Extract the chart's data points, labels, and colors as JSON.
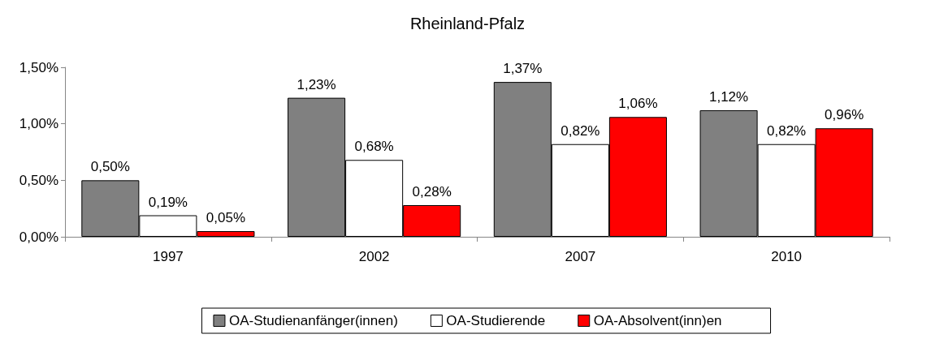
{
  "chart_data": {
    "type": "bar",
    "title": "Rheinland-Pfalz",
    "categories": [
      "1997",
      "2002",
      "2007",
      "2010"
    ],
    "series": [
      {
        "name": "OA-Studienanfänger(innen)",
        "color": "#808080",
        "values": [
          0.5,
          1.23,
          1.37,
          1.12
        ],
        "value_labels": [
          "0,50%",
          "1,23%",
          "1,37%",
          "1,12%"
        ]
      },
      {
        "name": "OA-Studierende",
        "color": "#ffffff",
        "values": [
          0.19,
          0.68,
          0.82,
          0.82
        ],
        "value_labels": [
          "0,19%",
          "0,68%",
          "0,82%",
          "0,82%"
        ]
      },
      {
        "name": "OA-Absolvent(inn)en",
        "color": "#ff0000",
        "values": [
          0.05,
          0.28,
          1.06,
          0.96
        ],
        "value_labels": [
          "0,05%",
          "0,28%",
          "1,06%",
          "0,96%"
        ]
      }
    ],
    "ylim": [
      0,
      1.5
    ],
    "yticks": [
      {
        "value": 0,
        "label": "0,00%"
      },
      {
        "value": 0.5,
        "label": "0,50%"
      },
      {
        "value": 1,
        "label": "1,00%"
      },
      {
        "value": 1.5,
        "label": "1,50%"
      }
    ],
    "grid": false,
    "legend": "bottom"
  }
}
